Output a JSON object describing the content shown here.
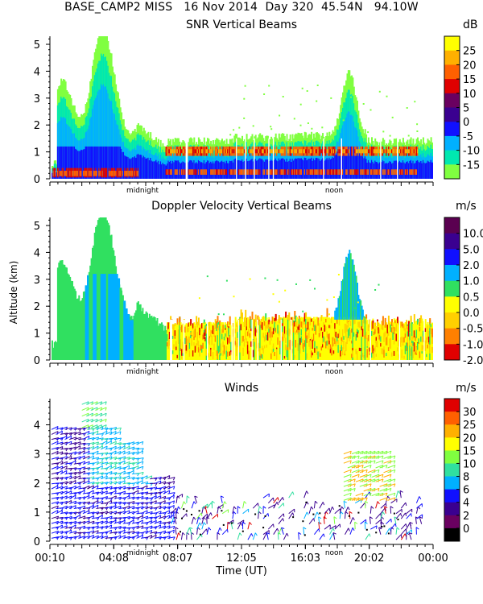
{
  "header": {
    "site": "BASE_CAMP2 MISS",
    "date": "16 Nov 2014",
    "day": "Day 320",
    "lat": "45.54N",
    "lon": "94.10W"
  },
  "chart_data": [
    {
      "type": "heatmap",
      "title": "SNR Vertical Beams",
      "colorbar_unit": "dB",
      "colorbar_ticks": [
        "25",
        "20",
        "15",
        "10",
        "5",
        "0",
        "-5",
        "-10",
        "-15"
      ],
      "colorbar_colors": [
        "#ffff00",
        "#ffb000",
        "#ff6000",
        "#e00000",
        "#6a0060",
        "#3a0090",
        "#1010ff",
        "#00b0ff",
        "#00e8b0",
        "#80ff40"
      ],
      "ylabel": "",
      "yticks": [
        "0",
        "1",
        "2",
        "3",
        "4",
        "5"
      ],
      "ylim": [
        0,
        5.3
      ],
      "x_markers": [
        "midnight",
        "noon"
      ],
      "x_marker_hours": [
        5.8,
        17.8
      ],
      "xlim_hours": [
        0,
        24
      ]
    },
    {
      "type": "heatmap",
      "title": "Doppler Velocity Vertical Beams",
      "colorbar_unit": "m/s",
      "colorbar_ticks": [
        "10.0",
        "5.0",
        "2.0",
        "1.0",
        "0.5",
        "0.0",
        "-0.5",
        "-1.0",
        "-2.0"
      ],
      "colorbar_colors": [
        "#5a0050",
        "#3a0090",
        "#1010ff",
        "#00b0ff",
        "#30e060",
        "#ffff00",
        "#ffd000",
        "#ff8000",
        "#e00000"
      ],
      "ylabel": "Altitude (km)",
      "yticks": [
        "0",
        "1",
        "2",
        "3",
        "4",
        "5"
      ],
      "ylim": [
        0,
        5.3
      ],
      "x_markers": [
        "midnight",
        "noon"
      ],
      "x_marker_hours": [
        5.8,
        17.8
      ],
      "xlim_hours": [
        0,
        24
      ]
    },
    {
      "type": "scatter",
      "title": "Winds",
      "colorbar_unit": "m/s",
      "colorbar_ticks": [
        "30",
        "25",
        "20",
        "15",
        "10",
        "8",
        "6",
        "4",
        "2",
        "0"
      ],
      "colorbar_colors": [
        "#e00000",
        "#ff6000",
        "#ffb000",
        "#ffff00",
        "#80ff40",
        "#30e0a0",
        "#00b0ff",
        "#1010ff",
        "#3a0090",
        "#6a0060",
        "#000000"
      ],
      "xlabel": "Time (UT)",
      "xticks": [
        "00:10",
        "04:08",
        "08:07",
        "12:05",
        "16:03",
        "20:02",
        "00:00"
      ],
      "yticks": [
        "0",
        "1",
        "2",
        "3",
        "4"
      ],
      "ylim": [
        0,
        4.9
      ],
      "x_markers": [
        "midnight",
        "noon"
      ],
      "x_marker_hours": [
        5.8,
        17.8
      ],
      "xlim_hours": [
        0,
        24
      ]
    }
  ]
}
